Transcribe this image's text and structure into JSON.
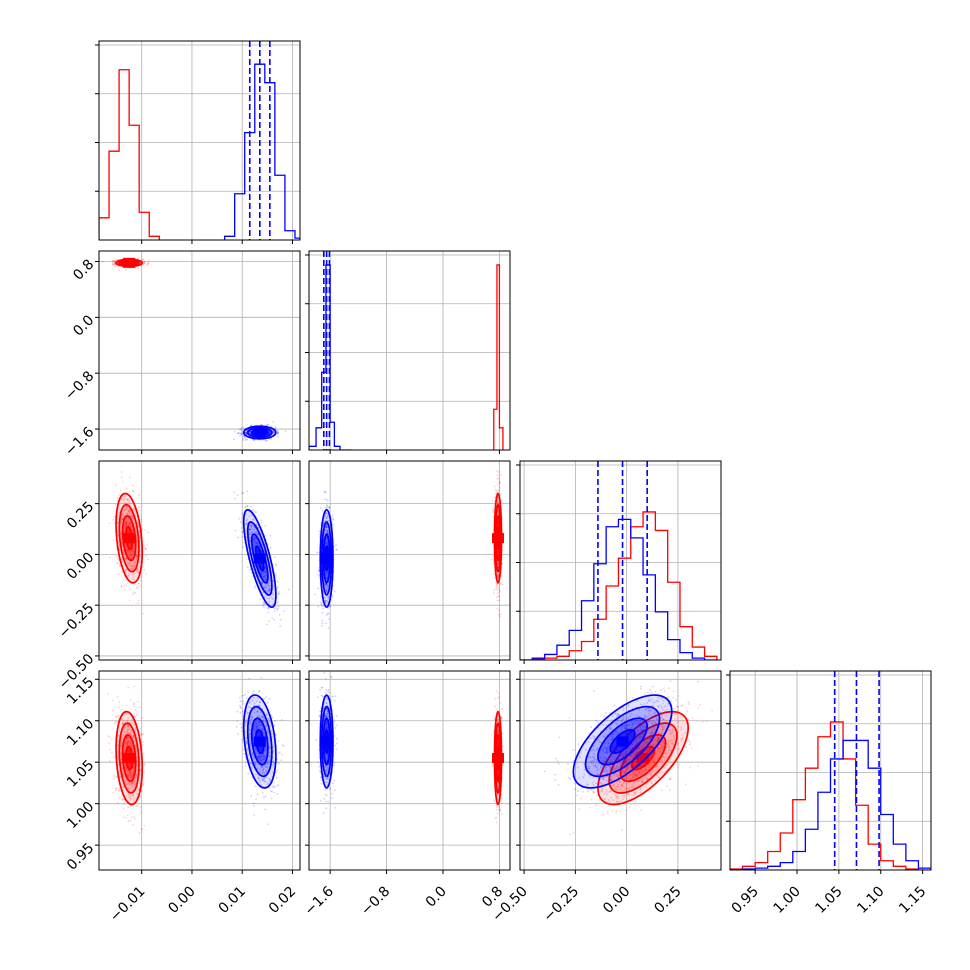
{
  "chart_data": {
    "type": "corner",
    "description_free": true,
    "grid": true,
    "parameters": [
      {
        "range": [
          -0.0185,
          0.0215
        ],
        "ticks": [
          -0.01,
          0.0,
          0.01,
          0.02
        ],
        "tick_labels": [
          "−0.01",
          "0.00",
          "0.01",
          "0.02"
        ]
      },
      {
        "range": [
          -1.9,
          0.95
        ],
        "ticks": [
          -1.6,
          -0.8,
          0.0,
          0.8
        ],
        "tick_labels": [
          "−1.6",
          "−0.8",
          "0.0",
          "0.8"
        ]
      },
      {
        "range": [
          -0.52,
          0.46
        ],
        "ticks": [
          -0.5,
          -0.25,
          0.0,
          0.25
        ],
        "tick_labels": [
          "−0.50",
          "−0.25",
          "0.00",
          "0.25"
        ]
      },
      {
        "range": [
          0.92,
          1.16
        ],
        "ticks": [
          0.95,
          1.0,
          1.05,
          1.1,
          1.15
        ],
        "tick_labels": [
          "0.95",
          "1.00",
          "1.05",
          "1.10",
          "1.15"
        ]
      }
    ],
    "series": [
      {
        "color": "#ff0000",
        "mean": [
          -0.0125,
          0.78,
          0.08,
          1.055
        ],
        "sd": [
          0.0013,
          0.025,
          0.11,
          0.028
        ],
        "correlations": [
          [
            0,
            2,
            -0.3
          ],
          [
            0,
            3,
            -0.2
          ],
          [
            2,
            3,
            0.65
          ]
        ],
        "histograms": [
          {
            "bins": [
              -0.0185,
              -0.0165,
              -0.0145,
              -0.0125,
              -0.0105,
              -0.0085,
              -0.0065
            ],
            "counts": [
              0.12,
              0.48,
              0.92,
              0.62,
              0.15,
              0.02
            ]
          },
          {
            "bins": [
              0.72,
              0.765,
              0.8,
              0.85
            ],
            "counts": [
              0.22,
              1.0,
              0.12
            ]
          },
          {
            "bins": [
              -0.52,
              -0.46,
              -0.4,
              -0.34,
              -0.28,
              -0.22,
              -0.16,
              -0.1,
              -0.04,
              0.02,
              0.08,
              0.14,
              0.2,
              0.26,
              0.32,
              0.38,
              0.44
            ],
            "counts": [
              0.0,
              0.005,
              0.01,
              0.02,
              0.05,
              0.1,
              0.22,
              0.4,
              0.55,
              0.72,
              0.8,
              0.7,
              0.42,
              0.18,
              0.07,
              0.02
            ]
          },
          {
            "bins": [
              0.92,
              0.935,
              0.95,
              0.965,
              0.98,
              0.995,
              1.01,
              1.025,
              1.04,
              1.055,
              1.07,
              1.085,
              1.1,
              1.115,
              1.13,
              1.145,
              1.16
            ],
            "counts": [
              0.005,
              0.02,
              0.04,
              0.1,
              0.2,
              0.38,
              0.55,
              0.72,
              0.8,
              0.6,
              0.35,
              0.14,
              0.05,
              0.02,
              0.005,
              0.0
            ]
          }
        ]
      },
      {
        "color": "#0000ff",
        "mean": [
          0.0135,
          -1.65,
          -0.02,
          1.075
        ],
        "sd": [
          0.0016,
          0.045,
          0.12,
          0.028
        ],
        "correlations": [
          [
            0,
            2,
            -0.75
          ],
          [
            0,
            3,
            -0.3
          ],
          [
            2,
            3,
            0.65
          ],
          [
            1,
            2,
            0.0
          ]
        ],
        "histograms": [
          {
            "bins": [
              0.0065,
              0.0085,
              0.0105,
              0.0125,
              0.0145,
              0.0165,
              0.0185,
              0.0205,
              0.0215
            ],
            "counts": [
              0.02,
              0.25,
              0.58,
              0.95,
              0.85,
              0.35,
              0.05,
              0.01
            ]
          },
          {
            "bins": [
              -1.9,
              -1.8,
              -1.72,
              -1.66,
              -1.6,
              -1.54,
              -1.46,
              -1.3
            ],
            "counts": [
              0.02,
              0.12,
              0.42,
              1.0,
              0.15,
              0.02,
              0.0
            ]
          },
          {
            "bins": [
              -0.52,
              -0.46,
              -0.4,
              -0.34,
              -0.28,
              -0.22,
              -0.16,
              -0.1,
              -0.04,
              0.02,
              0.08,
              0.14,
              0.2,
              0.26,
              0.32,
              0.38,
              0.44
            ],
            "counts": [
              0.0,
              0.01,
              0.03,
              0.08,
              0.16,
              0.32,
              0.52,
              0.72,
              0.76,
              0.66,
              0.46,
              0.26,
              0.11,
              0.04,
              0.01,
              0.0
            ]
          },
          {
            "bins": [
              0.92,
              0.935,
              0.95,
              0.965,
              0.98,
              0.995,
              1.01,
              1.025,
              1.04,
              1.055,
              1.07,
              1.085,
              1.1,
              1.115,
              1.13,
              1.145,
              1.16
            ],
            "counts": [
              0.0,
              0.005,
              0.01,
              0.02,
              0.04,
              0.1,
              0.22,
              0.42,
              0.6,
              0.7,
              0.7,
              0.55,
              0.3,
              0.14,
              0.05,
              0.01
            ]
          }
        ],
        "quantiles": [
          [
            0.0115,
            0.0135,
            0.0155
          ],
          [
            -1.69,
            -1.65,
            -1.61
          ],
          [
            -0.14,
            -0.02,
            0.1
          ],
          [
            1.045,
            1.071,
            1.098
          ]
        ]
      }
    ]
  }
}
